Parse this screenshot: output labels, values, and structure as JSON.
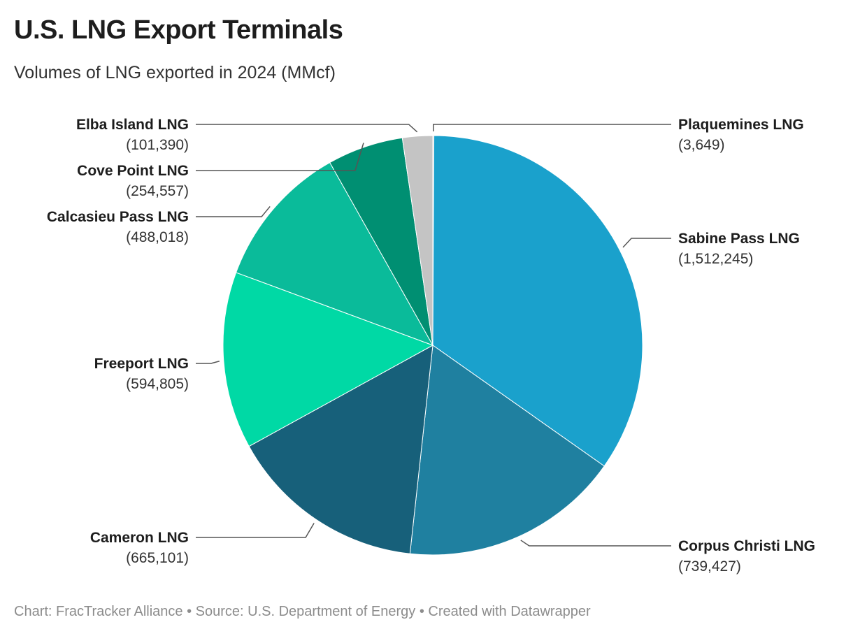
{
  "title": "U.S. LNG Export Terminals",
  "subtitle": "Volumes of LNG exported in 2024 (MMcf)",
  "footer": "Chart: FracTracker Alliance • Source: U.S. Department of Energy • Created with Datawrapper",
  "chart_data": {
    "type": "pie",
    "title": "U.S. LNG Export Terminals",
    "subtitle": "Volumes of LNG exported in 2024 (MMcf)",
    "slices": [
      {
        "label": "Plaquemines LNG",
        "value": 3649,
        "value_text": "(3,649)",
        "color": "#c4c4c4"
      },
      {
        "label": "Sabine Pass LNG",
        "value": 1512245,
        "value_text": "(1,512,245)",
        "color": "#1aa1cc"
      },
      {
        "label": "Corpus Christi LNG",
        "value": 739427,
        "value_text": "(739,427)",
        "color": "#1f80a0"
      },
      {
        "label": "Cameron LNG",
        "value": 665101,
        "value_text": "(665,101)",
        "color": "#17607a"
      },
      {
        "label": "Freeport LNG",
        "value": 594805,
        "value_text": "(594,805)",
        "color": "#00d9a5"
      },
      {
        "label": "Calcasieu Pass LNG",
        "value": 488018,
        "value_text": "(488,018)",
        "color": "#0abb9a"
      },
      {
        "label": "Cove Point LNG",
        "value": 254557,
        "value_text": "(254,557)",
        "color": "#008f72"
      },
      {
        "label": "Elba Island LNG",
        "value": 101390,
        "value_text": "(101,390)",
        "color": "#c4c4c4"
      }
    ]
  }
}
